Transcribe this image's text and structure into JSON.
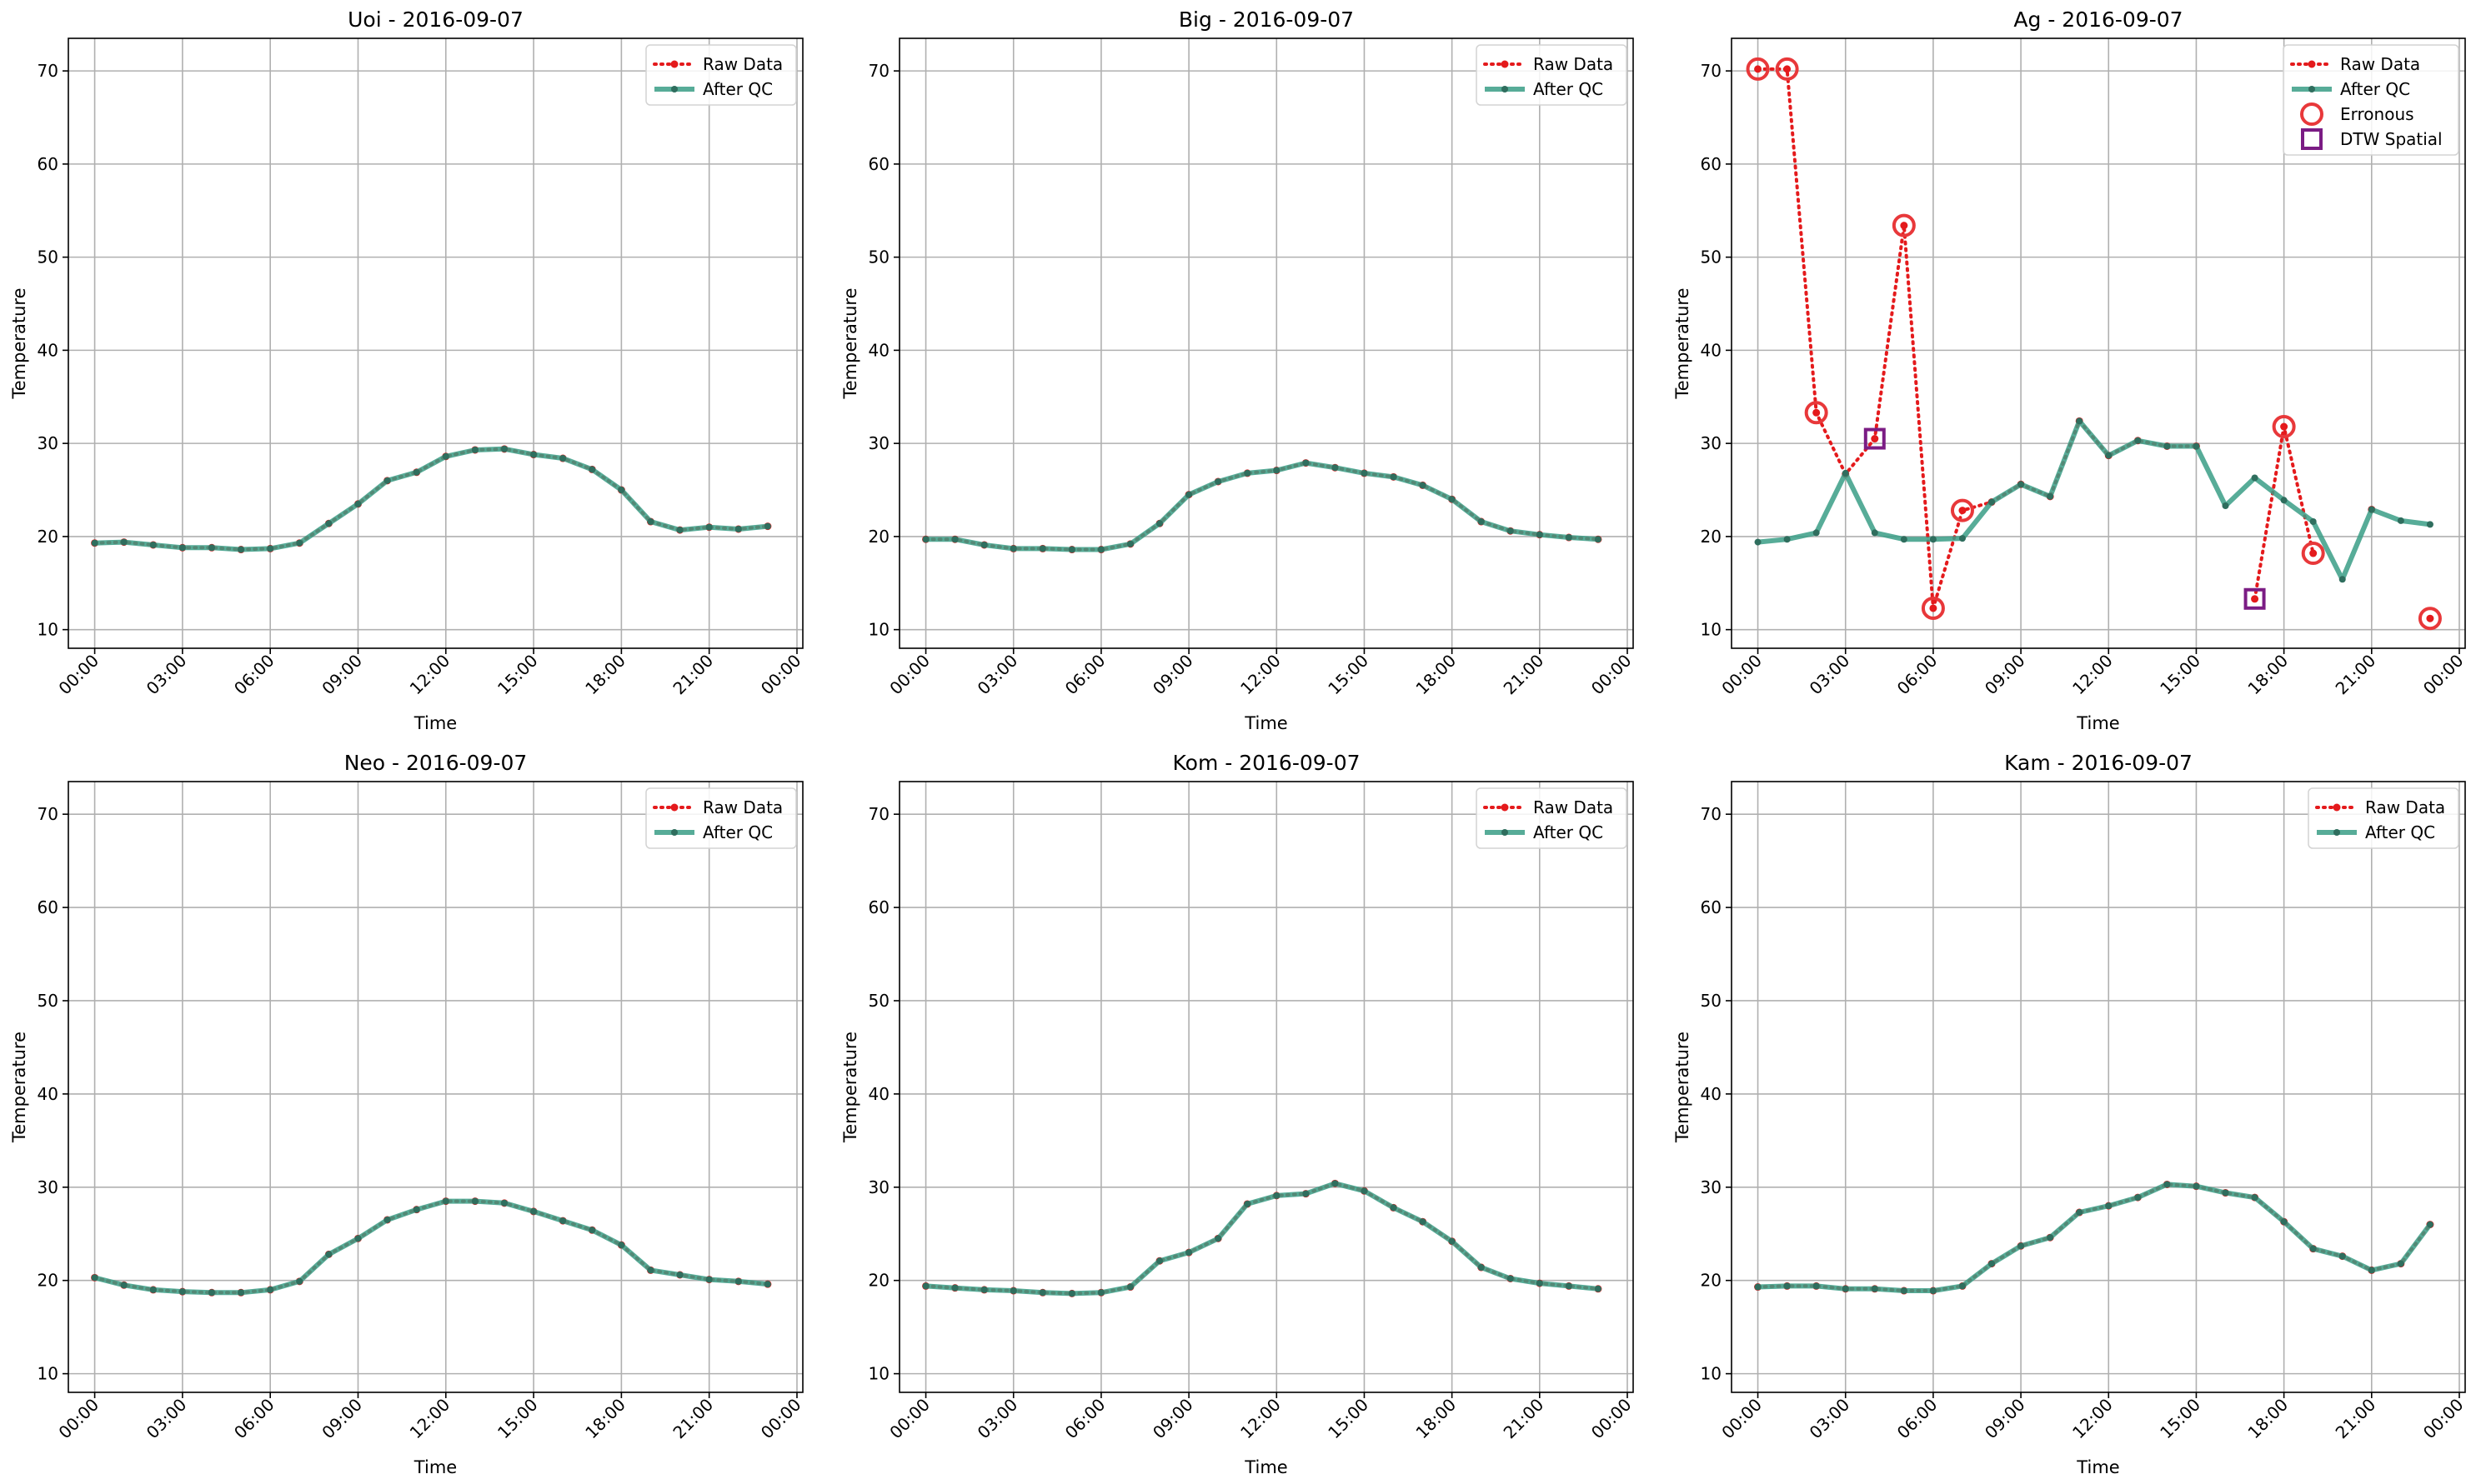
{
  "chart_data": [
    {
      "type": "line",
      "title": "Uoi - 2016-09-07",
      "xlabel": "Time",
      "ylabel": "Temperature",
      "ylim": [
        8,
        73.5
      ],
      "xlim": [
        -0.9,
        24.2
      ],
      "yticks": [
        10,
        20,
        30,
        40,
        50,
        60,
        70
      ],
      "xticks": [
        {
          "x": 0,
          "label": "00:00"
        },
        {
          "x": 3,
          "label": "03:00"
        },
        {
          "x": 6,
          "label": "06:00"
        },
        {
          "x": 9,
          "label": "09:00"
        },
        {
          "x": 12,
          "label": "12:00"
        },
        {
          "x": 15,
          "label": "15:00"
        },
        {
          "x": 18,
          "label": "18:00"
        },
        {
          "x": 21,
          "label": "21:00"
        },
        {
          "x": 24,
          "label": "00:00"
        }
      ],
      "grid": true,
      "legend_position": "top-right",
      "series": [
        {
          "name": "Raw Data",
          "color": "#e41a1c",
          "style": "dotted",
          "values": [
            19.3,
            19.4,
            19.1,
            18.8,
            18.8,
            18.6,
            18.7,
            19.3,
            21.4,
            23.5,
            26.0,
            26.9,
            28.6,
            29.3,
            29.4,
            28.8,
            28.4,
            27.2,
            25.0,
            21.6,
            20.7,
            21.0,
            20.8,
            21.1
          ]
        },
        {
          "name": "After QC",
          "color": "#3a9e86",
          "style": "solid",
          "values": [
            19.3,
            19.4,
            19.1,
            18.8,
            18.8,
            18.6,
            18.7,
            19.3,
            21.4,
            23.5,
            26.0,
            26.9,
            28.6,
            29.3,
            29.4,
            28.8,
            28.4,
            27.2,
            25.0,
            21.6,
            20.7,
            21.0,
            20.8,
            21.1
          ]
        }
      ]
    },
    {
      "type": "line",
      "title": "Big - 2016-09-07",
      "xlabel": "Time",
      "ylabel": "Temperature",
      "ylim": [
        8,
        73.5
      ],
      "xlim": [
        -0.9,
        24.2
      ],
      "yticks": [
        10,
        20,
        30,
        40,
        50,
        60,
        70
      ],
      "xticks": [
        {
          "x": 0,
          "label": "00:00"
        },
        {
          "x": 3,
          "label": "03:00"
        },
        {
          "x": 6,
          "label": "06:00"
        },
        {
          "x": 9,
          "label": "09:00"
        },
        {
          "x": 12,
          "label": "12:00"
        },
        {
          "x": 15,
          "label": "15:00"
        },
        {
          "x": 18,
          "label": "18:00"
        },
        {
          "x": 21,
          "label": "21:00"
        },
        {
          "x": 24,
          "label": "00:00"
        }
      ],
      "grid": true,
      "legend_position": "top-right",
      "series": [
        {
          "name": "Raw Data",
          "color": "#e41a1c",
          "style": "dotted",
          "values": [
            19.7,
            19.7,
            19.1,
            18.7,
            18.7,
            18.6,
            18.6,
            19.2,
            21.4,
            24.5,
            25.9,
            26.8,
            27.1,
            27.9,
            27.4,
            26.8,
            26.4,
            25.5,
            24.0,
            21.6,
            20.6,
            20.2,
            19.9,
            19.7
          ]
        },
        {
          "name": "After QC",
          "color": "#3a9e86",
          "style": "solid",
          "values": [
            19.7,
            19.7,
            19.1,
            18.7,
            18.7,
            18.6,
            18.6,
            19.2,
            21.4,
            24.5,
            25.9,
            26.8,
            27.1,
            27.9,
            27.4,
            26.8,
            26.4,
            25.5,
            24.0,
            21.6,
            20.6,
            20.2,
            19.9,
            19.7
          ]
        }
      ]
    },
    {
      "type": "line",
      "title": "Ag - 2016-09-07",
      "xlabel": "Time",
      "ylabel": "Temperature",
      "ylim": [
        8,
        73.5
      ],
      "xlim": [
        -0.9,
        24.2
      ],
      "yticks": [
        10,
        20,
        30,
        40,
        50,
        60,
        70
      ],
      "xticks": [
        {
          "x": 0,
          "label": "00:00"
        },
        {
          "x": 3,
          "label": "03:00"
        },
        {
          "x": 6,
          "label": "06:00"
        },
        {
          "x": 9,
          "label": "09:00"
        },
        {
          "x": 12,
          "label": "12:00"
        },
        {
          "x": 15,
          "label": "15:00"
        },
        {
          "x": 18,
          "label": "18:00"
        },
        {
          "x": 21,
          "label": "21:00"
        },
        {
          "x": 24,
          "label": "00:00"
        }
      ],
      "grid": true,
      "legend_position": "top-right",
      "series": [
        {
          "name": "Raw Data",
          "color": "#e41a1c",
          "style": "dotted",
          "values": [
            70.2,
            70.2,
            33.3,
            26.7,
            30.5,
            53.4,
            12.3,
            22.8,
            23.7,
            25.6,
            24.3,
            32.4,
            28.7,
            30.3,
            29.7,
            29.7,
            null,
            13.3,
            31.8,
            18.2,
            null,
            22.9,
            null,
            11.2
          ]
        },
        {
          "name": "After QC",
          "color": "#3a9e86",
          "style": "solid",
          "values": [
            19.4,
            19.7,
            20.4,
            26.8,
            20.4,
            19.7,
            19.7,
            19.8,
            23.7,
            25.6,
            24.3,
            32.4,
            28.7,
            30.3,
            29.7,
            29.7,
            23.3,
            26.3,
            23.9,
            21.6,
            15.4,
            22.9,
            21.7,
            21.3
          ]
        }
      ],
      "markers": [
        {
          "name": "Erronous",
          "shape": "circle",
          "color": "#e8383a",
          "points": [
            [
              0,
              70.2
            ],
            [
              1,
              70.2
            ],
            [
              2,
              33.3
            ],
            [
              5,
              53.4
            ],
            [
              6,
              12.3
            ],
            [
              7,
              22.8
            ],
            [
              18,
              31.8
            ],
            [
              19,
              18.2
            ],
            [
              23,
              11.2
            ]
          ]
        },
        {
          "name": "DTW Spatial",
          "shape": "square",
          "color": "#7b1c84",
          "points": [
            [
              4,
              30.5
            ],
            [
              17,
              13.3
            ]
          ]
        }
      ]
    },
    {
      "type": "line",
      "title": "Neo - 2016-09-07",
      "xlabel": "Time",
      "ylabel": "Temperature",
      "ylim": [
        8,
        73.5
      ],
      "xlim": [
        -0.9,
        24.2
      ],
      "yticks": [
        10,
        20,
        30,
        40,
        50,
        60,
        70
      ],
      "xticks": [
        {
          "x": 0,
          "label": "00:00"
        },
        {
          "x": 3,
          "label": "03:00"
        },
        {
          "x": 6,
          "label": "06:00"
        },
        {
          "x": 9,
          "label": "09:00"
        },
        {
          "x": 12,
          "label": "12:00"
        },
        {
          "x": 15,
          "label": "15:00"
        },
        {
          "x": 18,
          "label": "18:00"
        },
        {
          "x": 21,
          "label": "21:00"
        },
        {
          "x": 24,
          "label": "00:00"
        }
      ],
      "grid": true,
      "legend_position": "top-right",
      "series": [
        {
          "name": "Raw Data",
          "color": "#e41a1c",
          "style": "dotted",
          "values": [
            20.3,
            19.5,
            19.0,
            18.8,
            18.7,
            18.7,
            19.0,
            19.9,
            22.8,
            24.5,
            26.5,
            27.6,
            28.5,
            28.5,
            28.3,
            27.4,
            26.4,
            25.4,
            23.8,
            21.1,
            20.6,
            20.1,
            19.9,
            19.6
          ]
        },
        {
          "name": "After QC",
          "color": "#3a9e86",
          "style": "solid",
          "values": [
            20.3,
            19.5,
            19.0,
            18.8,
            18.7,
            18.7,
            19.0,
            19.9,
            22.8,
            24.5,
            26.5,
            27.6,
            28.5,
            28.5,
            28.3,
            27.4,
            26.4,
            25.4,
            23.8,
            21.1,
            20.6,
            20.1,
            19.9,
            19.6
          ]
        }
      ]
    },
    {
      "type": "line",
      "title": "Kom - 2016-09-07",
      "xlabel": "Time",
      "ylabel": "Temperature",
      "ylim": [
        8,
        73.5
      ],
      "xlim": [
        -0.9,
        24.2
      ],
      "yticks": [
        10,
        20,
        30,
        40,
        50,
        60,
        70
      ],
      "xticks": [
        {
          "x": 0,
          "label": "00:00"
        },
        {
          "x": 3,
          "label": "03:00"
        },
        {
          "x": 6,
          "label": "06:00"
        },
        {
          "x": 9,
          "label": "09:00"
        },
        {
          "x": 12,
          "label": "12:00"
        },
        {
          "x": 15,
          "label": "15:00"
        },
        {
          "x": 18,
          "label": "18:00"
        },
        {
          "x": 21,
          "label": "21:00"
        },
        {
          "x": 24,
          "label": "00:00"
        }
      ],
      "grid": true,
      "legend_position": "top-right",
      "series": [
        {
          "name": "Raw Data",
          "color": "#e41a1c",
          "style": "dotted",
          "values": [
            19.4,
            19.2,
            19.0,
            18.9,
            18.7,
            18.6,
            18.7,
            19.3,
            22.1,
            23.0,
            24.5,
            28.2,
            29.1,
            29.3,
            30.4,
            29.6,
            27.8,
            26.3,
            24.2,
            21.4,
            20.2,
            19.7,
            19.4,
            19.1
          ]
        },
        {
          "name": "After QC",
          "color": "#3a9e86",
          "style": "solid",
          "values": [
            19.4,
            19.2,
            19.0,
            18.9,
            18.7,
            18.6,
            18.7,
            19.3,
            22.1,
            23.0,
            24.5,
            28.2,
            29.1,
            29.3,
            30.4,
            29.6,
            27.8,
            26.3,
            24.2,
            21.4,
            20.2,
            19.7,
            19.4,
            19.1
          ]
        }
      ]
    },
    {
      "type": "line",
      "title": "Kam - 2016-09-07",
      "xlabel": "Time",
      "ylabel": "Temperature",
      "ylim": [
        8,
        73.5
      ],
      "xlim": [
        -0.9,
        24.2
      ],
      "yticks": [
        10,
        20,
        30,
        40,
        50,
        60,
        70
      ],
      "xticks": [
        {
          "x": 0,
          "label": "00:00"
        },
        {
          "x": 3,
          "label": "03:00"
        },
        {
          "x": 6,
          "label": "06:00"
        },
        {
          "x": 9,
          "label": "09:00"
        },
        {
          "x": 12,
          "label": "12:00"
        },
        {
          "x": 15,
          "label": "15:00"
        },
        {
          "x": 18,
          "label": "18:00"
        },
        {
          "x": 21,
          "label": "21:00"
        },
        {
          "x": 24,
          "label": "00:00"
        }
      ],
      "grid": true,
      "legend_position": "top-right",
      "series": [
        {
          "name": "Raw Data",
          "color": "#e41a1c",
          "style": "dotted",
          "values": [
            19.3,
            19.4,
            19.4,
            19.1,
            19.1,
            18.9,
            18.9,
            19.4,
            21.8,
            23.7,
            24.6,
            27.3,
            28.0,
            28.9,
            30.3,
            30.1,
            29.4,
            28.9,
            26.3,
            23.4,
            22.6,
            21.1,
            21.8,
            26.0
          ]
        },
        {
          "name": "After QC",
          "color": "#3a9e86",
          "style": "solid",
          "values": [
            19.3,
            19.4,
            19.4,
            19.1,
            19.1,
            18.9,
            18.9,
            19.4,
            21.8,
            23.7,
            24.6,
            27.3,
            28.0,
            28.9,
            30.3,
            30.1,
            29.4,
            28.9,
            26.3,
            23.4,
            22.6,
            21.1,
            21.8,
            26.0
          ]
        }
      ]
    }
  ]
}
